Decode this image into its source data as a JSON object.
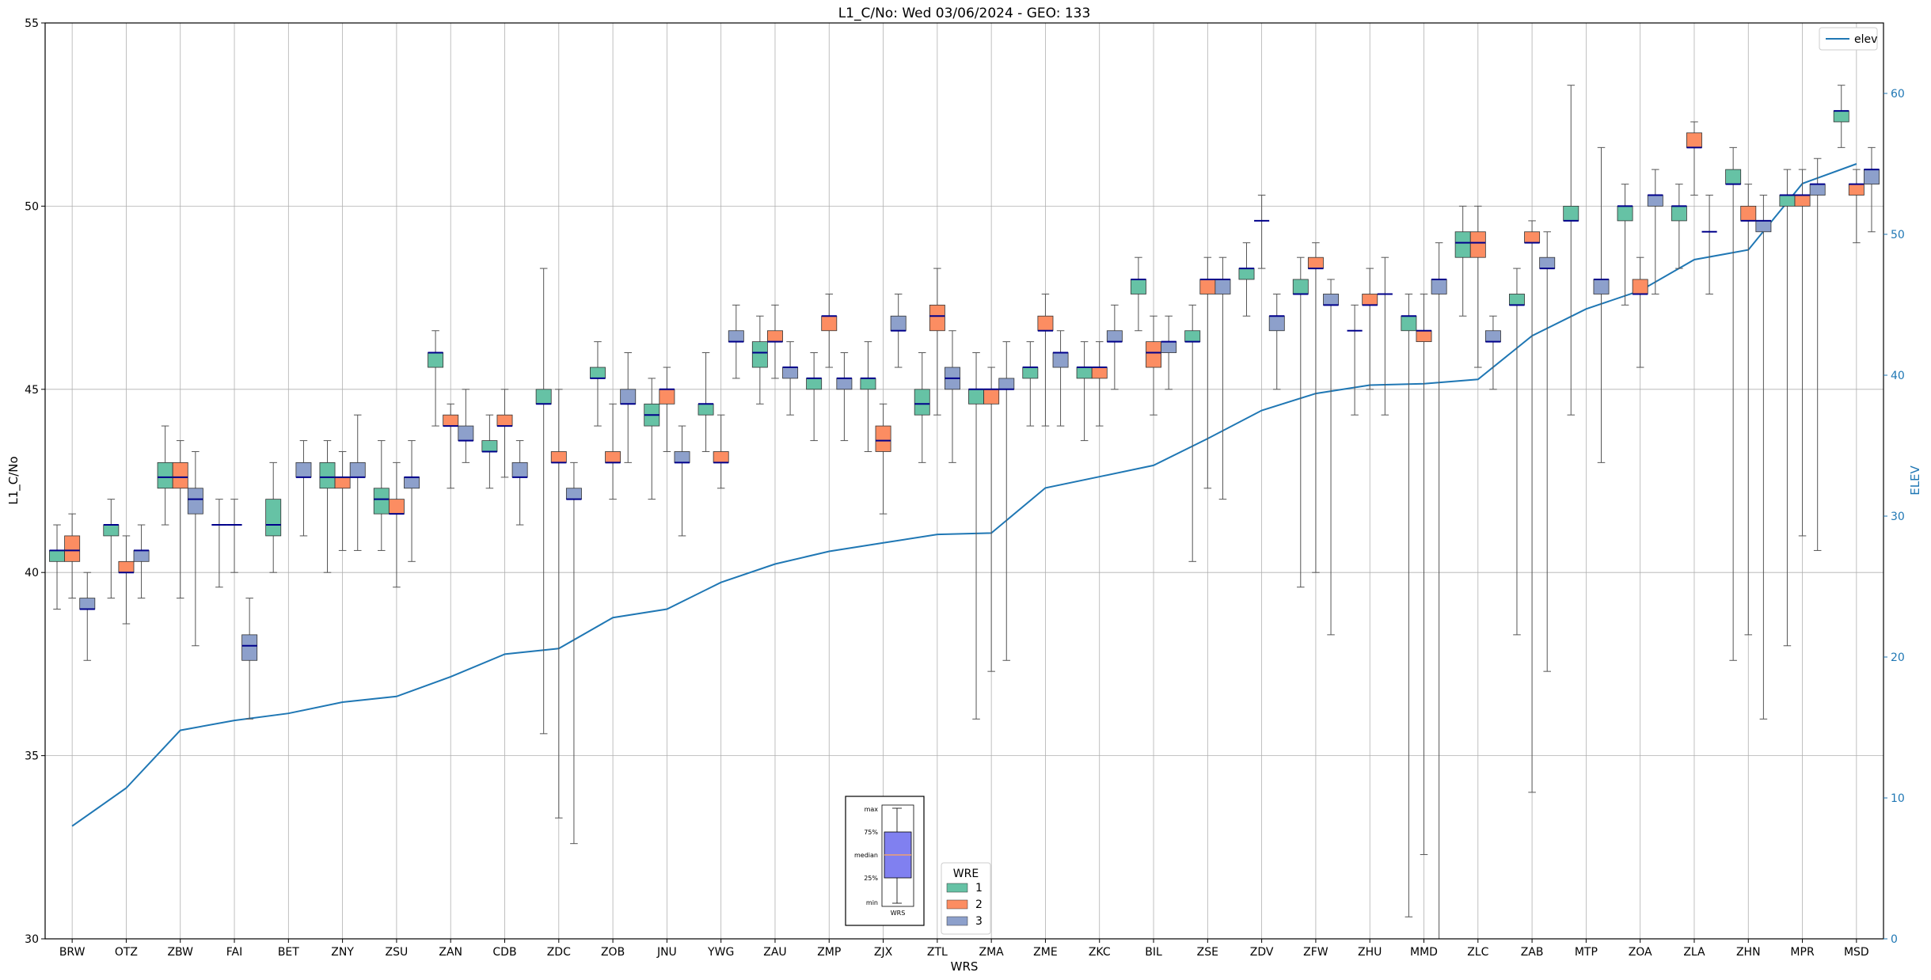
{
  "chart_data": {
    "type": "box",
    "title": "L1_C/No: Wed 03/06/2024 - GEO: 133",
    "xlabel": "WRS",
    "ylabel": "L1_C/No",
    "y2label": "ELEV",
    "ylim": [
      30,
      55
    ],
    "y2lim": [
      0,
      65
    ],
    "yticks": [
      30,
      35,
      40,
      45,
      50,
      55
    ],
    "y2ticks": [
      0,
      10,
      20,
      30,
      40,
      50,
      60
    ],
    "grid": true,
    "categories": [
      "BRW",
      "OTZ",
      "ZBW",
      "FAI",
      "BET",
      "ZNY",
      "ZSU",
      "ZAN",
      "CDB",
      "ZDC",
      "ZOB",
      "JNU",
      "YWG",
      "ZAU",
      "ZMP",
      "ZJX",
      "ZTL",
      "ZMA",
      "ZME",
      "ZKC",
      "BIL",
      "ZSE",
      "ZDV",
      "ZFW",
      "ZHU",
      "MMD",
      "ZLC",
      "ZAB",
      "MTP",
      "ZOA",
      "ZLA",
      "ZHN",
      "MPR",
      "MSD"
    ],
    "series_colors": {
      "1": "#66c2a5",
      "2": "#fc8d62",
      "3": "#8da0cb"
    },
    "median_color": "#00008b",
    "elev_color": "#1f77b4",
    "boxes": [
      {
        "cat": "BRW",
        "wre": "1",
        "min": 39.0,
        "q1": 40.3,
        "med": 40.6,
        "q3": 40.6,
        "max": 41.3
      },
      {
        "cat": "BRW",
        "wre": "2",
        "min": 39.3,
        "q1": 40.3,
        "med": 40.6,
        "q3": 41.0,
        "max": 41.6
      },
      {
        "cat": "BRW",
        "wre": "3",
        "min": 37.6,
        "q1": 39.0,
        "med": 39.0,
        "q3": 39.3,
        "max": 40.0
      },
      {
        "cat": "OTZ",
        "wre": "1",
        "min": 39.3,
        "q1": 41.0,
        "med": 41.3,
        "q3": 41.3,
        "max": 42.0
      },
      {
        "cat": "OTZ",
        "wre": "2",
        "min": 38.6,
        "q1": 40.0,
        "med": 40.0,
        "q3": 40.3,
        "max": 41.0
      },
      {
        "cat": "OTZ",
        "wre": "3",
        "min": 39.3,
        "q1": 40.3,
        "med": 40.6,
        "q3": 40.6,
        "max": 41.3
      },
      {
        "cat": "ZBW",
        "wre": "1",
        "min": 41.3,
        "q1": 42.3,
        "med": 42.6,
        "q3": 43.0,
        "max": 44.0
      },
      {
        "cat": "ZBW",
        "wre": "2",
        "min": 39.3,
        "q1": 42.3,
        "med": 42.6,
        "q3": 43.0,
        "max": 43.6
      },
      {
        "cat": "ZBW",
        "wre": "3",
        "min": 38.0,
        "q1": 41.6,
        "med": 42.0,
        "q3": 42.3,
        "max": 43.3
      },
      {
        "cat": "FAI",
        "wre": "1",
        "min": 39.6,
        "q1": 41.3,
        "med": 41.3,
        "q3": 41.3,
        "max": 42.0
      },
      {
        "cat": "FAI",
        "wre": "2",
        "min": 40.0,
        "q1": 41.3,
        "med": 41.3,
        "q3": 41.3,
        "max": 42.0
      },
      {
        "cat": "FAI",
        "wre": "3",
        "min": 36.0,
        "q1": 37.6,
        "med": 38.0,
        "q3": 38.3,
        "max": 39.3
      },
      {
        "cat": "BET",
        "wre": "1",
        "min": 40.0,
        "q1": 41.0,
        "med": 41.3,
        "q3": 42.0,
        "max": 43.0
      },
      {
        "cat": "BET",
        "wre": "3",
        "min": 41.0,
        "q1": 42.6,
        "med": 42.6,
        "q3": 43.0,
        "max": 43.6
      },
      {
        "cat": "ZNY",
        "wre": "1",
        "min": 40.0,
        "q1": 42.3,
        "med": 42.6,
        "q3": 43.0,
        "max": 43.6
      },
      {
        "cat": "ZNY",
        "wre": "2",
        "min": 40.6,
        "q1": 42.3,
        "med": 42.6,
        "q3": 42.6,
        "max": 43.3
      },
      {
        "cat": "ZNY",
        "wre": "3",
        "min": 40.6,
        "q1": 42.6,
        "med": 42.6,
        "q3": 43.0,
        "max": 44.3
      },
      {
        "cat": "ZSU",
        "wre": "1",
        "min": 40.6,
        "q1": 41.6,
        "med": 42.0,
        "q3": 42.3,
        "max": 43.6
      },
      {
        "cat": "ZSU",
        "wre": "2",
        "min": 39.6,
        "q1": 41.6,
        "med": 41.6,
        "q3": 42.0,
        "max": 43.0
      },
      {
        "cat": "ZSU",
        "wre": "3",
        "min": 40.3,
        "q1": 42.3,
        "med": 42.6,
        "q3": 42.6,
        "max": 43.6
      },
      {
        "cat": "ZAN",
        "wre": "1",
        "min": 44.0,
        "q1": 45.6,
        "med": 46.0,
        "q3": 46.0,
        "max": 46.6
      },
      {
        "cat": "ZAN",
        "wre": "2",
        "min": 42.3,
        "q1": 44.0,
        "med": 44.0,
        "q3": 44.3,
        "max": 44.6
      },
      {
        "cat": "ZAN",
        "wre": "3",
        "min": 43.0,
        "q1": 43.6,
        "med": 43.6,
        "q3": 44.0,
        "max": 45.0
      },
      {
        "cat": "CDB",
        "wre": "1",
        "min": 42.3,
        "q1": 43.3,
        "med": 43.3,
        "q3": 43.6,
        "max": 44.3
      },
      {
        "cat": "CDB",
        "wre": "2",
        "min": 42.6,
        "q1": 44.0,
        "med": 44.0,
        "q3": 44.3,
        "max": 45.0
      },
      {
        "cat": "CDB",
        "wre": "3",
        "min": 41.3,
        "q1": 42.6,
        "med": 42.6,
        "q3": 43.0,
        "max": 43.6
      },
      {
        "cat": "ZDC",
        "wre": "1",
        "min": 35.6,
        "q1": 44.6,
        "med": 44.6,
        "q3": 45.0,
        "max": 48.3
      },
      {
        "cat": "ZDC",
        "wre": "2",
        "min": 33.3,
        "q1": 43.0,
        "med": 43.0,
        "q3": 43.3,
        "max": 45.0
      },
      {
        "cat": "ZDC",
        "wre": "3",
        "min": 32.6,
        "q1": 42.0,
        "med": 42.0,
        "q3": 42.3,
        "max": 43.0
      },
      {
        "cat": "ZOB",
        "wre": "1",
        "min": 44.0,
        "q1": 45.3,
        "med": 45.3,
        "q3": 45.6,
        "max": 46.3
      },
      {
        "cat": "ZOB",
        "wre": "2",
        "min": 42.0,
        "q1": 43.0,
        "med": 43.0,
        "q3": 43.3,
        "max": 44.6
      },
      {
        "cat": "ZOB",
        "wre": "3",
        "min": 43.0,
        "q1": 44.6,
        "med": 44.6,
        "q3": 45.0,
        "max": 46.0
      },
      {
        "cat": "JNU",
        "wre": "1",
        "min": 42.0,
        "q1": 44.0,
        "med": 44.3,
        "q3": 44.6,
        "max": 45.3
      },
      {
        "cat": "JNU",
        "wre": "2",
        "min": 43.3,
        "q1": 44.6,
        "med": 45.0,
        "q3": 45.0,
        "max": 45.6
      },
      {
        "cat": "JNU",
        "wre": "3",
        "min": 41.0,
        "q1": 43.0,
        "med": 43.0,
        "q3": 43.3,
        "max": 44.0
      },
      {
        "cat": "YWG",
        "wre": "1",
        "min": 43.3,
        "q1": 44.3,
        "med": 44.6,
        "q3": 44.6,
        "max": 46.0
      },
      {
        "cat": "YWG",
        "wre": "2",
        "min": 42.3,
        "q1": 43.0,
        "med": 43.0,
        "q3": 43.3,
        "max": 44.3
      },
      {
        "cat": "YWG",
        "wre": "3",
        "min": 45.3,
        "q1": 46.3,
        "med": 46.3,
        "q3": 46.6,
        "max": 47.3
      },
      {
        "cat": "ZAU",
        "wre": "1",
        "min": 44.6,
        "q1": 45.6,
        "med": 46.0,
        "q3": 46.3,
        "max": 47.0
      },
      {
        "cat": "ZAU",
        "wre": "2",
        "min": 45.3,
        "q1": 46.3,
        "med": 46.3,
        "q3": 46.6,
        "max": 47.3
      },
      {
        "cat": "ZAU",
        "wre": "3",
        "min": 44.3,
        "q1": 45.3,
        "med": 45.6,
        "q3": 45.6,
        "max": 46.3
      },
      {
        "cat": "ZMP",
        "wre": "1",
        "min": 43.6,
        "q1": 45.0,
        "med": 45.3,
        "q3": 45.3,
        "max": 46.0
      },
      {
        "cat": "ZMP",
        "wre": "2",
        "min": 45.6,
        "q1": 46.6,
        "med": 47.0,
        "q3": 47.0,
        "max": 47.6
      },
      {
        "cat": "ZMP",
        "wre": "3",
        "min": 43.6,
        "q1": 45.0,
        "med": 45.3,
        "q3": 45.3,
        "max": 46.0
      },
      {
        "cat": "ZJX",
        "wre": "1",
        "min": 43.3,
        "q1": 45.0,
        "med": 45.3,
        "q3": 45.3,
        "max": 46.3
      },
      {
        "cat": "ZJX",
        "wre": "2",
        "min": 41.6,
        "q1": 43.3,
        "med": 43.6,
        "q3": 44.0,
        "max": 44.6
      },
      {
        "cat": "ZJX",
        "wre": "3",
        "min": 45.6,
        "q1": 46.6,
        "med": 46.6,
        "q3": 47.0,
        "max": 47.6
      },
      {
        "cat": "ZTL",
        "wre": "1",
        "min": 43.0,
        "q1": 44.3,
        "med": 44.6,
        "q3": 45.0,
        "max": 46.0
      },
      {
        "cat": "ZTL",
        "wre": "2",
        "min": 44.3,
        "q1": 46.6,
        "med": 47.0,
        "q3": 47.3,
        "max": 48.3
      },
      {
        "cat": "ZTL",
        "wre": "3",
        "min": 43.0,
        "q1": 45.0,
        "med": 45.3,
        "q3": 45.6,
        "max": 46.6
      },
      {
        "cat": "ZMA",
        "wre": "1",
        "min": 36.0,
        "q1": 44.6,
        "med": 45.0,
        "q3": 45.0,
        "max": 46.0
      },
      {
        "cat": "ZMA",
        "wre": "2",
        "min": 37.3,
        "q1": 44.6,
        "med": 45.0,
        "q3": 45.0,
        "max": 45.6
      },
      {
        "cat": "ZMA",
        "wre": "3",
        "min": 37.6,
        "q1": 45.0,
        "med": 45.0,
        "q3": 45.3,
        "max": 46.3
      },
      {
        "cat": "ZME",
        "wre": "1",
        "min": 44.0,
        "q1": 45.3,
        "med": 45.6,
        "q3": 45.6,
        "max": 46.3
      },
      {
        "cat": "ZME",
        "wre": "2",
        "min": 44.0,
        "q1": 46.6,
        "med": 46.6,
        "q3": 47.0,
        "max": 47.6
      },
      {
        "cat": "ZME",
        "wre": "3",
        "min": 44.0,
        "q1": 45.6,
        "med": 46.0,
        "q3": 46.0,
        "max": 46.6
      },
      {
        "cat": "ZKC",
        "wre": "1",
        "min": 43.6,
        "q1": 45.3,
        "med": 45.6,
        "q3": 45.6,
        "max": 46.3
      },
      {
        "cat": "ZKC",
        "wre": "2",
        "min": 44.0,
        "q1": 45.3,
        "med": 45.6,
        "q3": 45.6,
        "max": 46.3
      },
      {
        "cat": "ZKC",
        "wre": "3",
        "min": 45.0,
        "q1": 46.3,
        "med": 46.3,
        "q3": 46.6,
        "max": 47.3
      },
      {
        "cat": "BIL",
        "wre": "1",
        "min": 46.6,
        "q1": 47.6,
        "med": 48.0,
        "q3": 48.0,
        "max": 48.6
      },
      {
        "cat": "BIL",
        "wre": "2",
        "min": 44.3,
        "q1": 45.6,
        "med": 46.0,
        "q3": 46.3,
        "max": 47.0
      },
      {
        "cat": "BIL",
        "wre": "3",
        "min": 45.0,
        "q1": 46.0,
        "med": 46.3,
        "q3": 46.3,
        "max": 47.0
      },
      {
        "cat": "ZSE",
        "wre": "1",
        "min": 40.3,
        "q1": 46.3,
        "med": 46.3,
        "q3": 46.6,
        "max": 47.3
      },
      {
        "cat": "ZSE",
        "wre": "2",
        "min": 42.3,
        "q1": 47.6,
        "med": 48.0,
        "q3": 48.0,
        "max": 48.6
      },
      {
        "cat": "ZSE",
        "wre": "3",
        "min": 42.0,
        "q1": 47.6,
        "med": 48.0,
        "q3": 48.0,
        "max": 48.6
      },
      {
        "cat": "ZDV",
        "wre": "1",
        "min": 47.0,
        "q1": 48.0,
        "med": 48.3,
        "q3": 48.3,
        "max": 49.0
      },
      {
        "cat": "ZDV",
        "wre": "2",
        "min": 48.3,
        "q1": 49.6,
        "med": 49.6,
        "q3": 49.6,
        "max": 50.3
      },
      {
        "cat": "ZDV",
        "wre": "3",
        "min": 45.0,
        "q1": 46.6,
        "med": 47.0,
        "q3": 47.0,
        "max": 47.6
      },
      {
        "cat": "ZFW",
        "wre": "1",
        "min": 39.6,
        "q1": 47.6,
        "med": 47.6,
        "q3": 48.0,
        "max": 48.6
      },
      {
        "cat": "ZFW",
        "wre": "2",
        "min": 40.0,
        "q1": 48.3,
        "med": 48.3,
        "q3": 48.6,
        "max": 49.0
      },
      {
        "cat": "ZFW",
        "wre": "3",
        "min": 38.3,
        "q1": 47.3,
        "med": 47.3,
        "q3": 47.6,
        "max": 48.0
      },
      {
        "cat": "ZHU",
        "wre": "1",
        "min": 44.3,
        "q1": 46.6,
        "med": 46.6,
        "q3": 46.6,
        "max": 47.3
      },
      {
        "cat": "ZHU",
        "wre": "2",
        "min": 45.0,
        "q1": 47.3,
        "med": 47.3,
        "q3": 47.6,
        "max": 48.3
      },
      {
        "cat": "ZHU",
        "wre": "3",
        "min": 44.3,
        "q1": 47.6,
        "med": 47.6,
        "q3": 47.6,
        "max": 48.6
      },
      {
        "cat": "MMD",
        "wre": "1",
        "min": 30.6,
        "q1": 46.6,
        "med": 47.0,
        "q3": 47.0,
        "max": 47.6
      },
      {
        "cat": "MMD",
        "wre": "2",
        "min": 32.3,
        "q1": 46.3,
        "med": 46.6,
        "q3": 46.6,
        "max": 47.6
      },
      {
        "cat": "MMD",
        "wre": "3",
        "min": 30.0,
        "q1": 47.6,
        "med": 48.0,
        "q3": 48.0,
        "max": 49.0
      },
      {
        "cat": "ZLC",
        "wre": "1",
        "min": 47.0,
        "q1": 48.6,
        "med": 49.0,
        "q3": 49.3,
        "max": 50.0
      },
      {
        "cat": "ZLC",
        "wre": "2",
        "min": 45.6,
        "q1": 48.6,
        "med": 49.0,
        "q3": 49.3,
        "max": 50.0
      },
      {
        "cat": "ZLC",
        "wre": "3",
        "min": 45.0,
        "q1": 46.3,
        "med": 46.3,
        "q3": 46.6,
        "max": 47.0
      },
      {
        "cat": "ZAB",
        "wre": "1",
        "min": 38.3,
        "q1": 47.3,
        "med": 47.3,
        "q3": 47.6,
        "max": 48.3
      },
      {
        "cat": "ZAB",
        "wre": "2",
        "min": 34.0,
        "q1": 49.0,
        "med": 49.0,
        "q3": 49.3,
        "max": 49.6
      },
      {
        "cat": "ZAB",
        "wre": "3",
        "min": 37.3,
        "q1": 48.3,
        "med": 48.3,
        "q3": 48.6,
        "max": 49.3
      },
      {
        "cat": "MTP",
        "wre": "1",
        "min": 44.3,
        "q1": 49.6,
        "med": 49.6,
        "q3": 50.0,
        "max": 53.3
      },
      {
        "cat": "MTP",
        "wre": "3",
        "min": 43.0,
        "q1": 47.6,
        "med": 48.0,
        "q3": 48.0,
        "max": 51.6
      },
      {
        "cat": "ZOA",
        "wre": "1",
        "min": 47.3,
        "q1": 49.6,
        "med": 50.0,
        "q3": 50.0,
        "max": 50.6
      },
      {
        "cat": "ZOA",
        "wre": "2",
        "min": 45.6,
        "q1": 47.6,
        "med": 47.6,
        "q3": 48.0,
        "max": 48.6
      },
      {
        "cat": "ZOA",
        "wre": "3",
        "min": 47.6,
        "q1": 50.0,
        "med": 50.3,
        "q3": 50.3,
        "max": 51.0
      },
      {
        "cat": "ZLA",
        "wre": "1",
        "min": 48.3,
        "q1": 49.6,
        "med": 50.0,
        "q3": 50.0,
        "max": 50.6
      },
      {
        "cat": "ZLA",
        "wre": "2",
        "min": 50.3,
        "q1": 51.6,
        "med": 51.6,
        "q3": 52.0,
        "max": 52.3
      },
      {
        "cat": "ZLA",
        "wre": "3",
        "min": 47.6,
        "q1": 49.3,
        "med": 49.3,
        "q3": 49.3,
        "max": 50.3
      },
      {
        "cat": "ZHN",
        "wre": "1",
        "min": 37.6,
        "q1": 50.6,
        "med": 50.6,
        "q3": 51.0,
        "max": 51.6
      },
      {
        "cat": "ZHN",
        "wre": "2",
        "min": 38.3,
        "q1": 49.6,
        "med": 49.6,
        "q3": 50.0,
        "max": 50.6
      },
      {
        "cat": "ZHN",
        "wre": "3",
        "min": 36.0,
        "q1": 49.3,
        "med": 49.6,
        "q3": 49.6,
        "max": 50.3
      },
      {
        "cat": "MPR",
        "wre": "1",
        "min": 38.0,
        "q1": 50.0,
        "med": 50.3,
        "q3": 50.3,
        "max": 51.0
      },
      {
        "cat": "MPR",
        "wre": "2",
        "min": 41.0,
        "q1": 50.0,
        "med": 50.3,
        "q3": 50.3,
        "max": 51.0
      },
      {
        "cat": "MPR",
        "wre": "3",
        "min": 40.6,
        "q1": 50.3,
        "med": 50.6,
        "q3": 50.6,
        "max": 51.3
      },
      {
        "cat": "MSD",
        "wre": "1",
        "min": 51.6,
        "q1": 52.3,
        "med": 52.6,
        "q3": 52.6,
        "max": 53.3
      },
      {
        "cat": "MSD",
        "wre": "2",
        "min": 49.0,
        "q1": 50.3,
        "med": 50.6,
        "q3": 50.6,
        "max": 51.0
      },
      {
        "cat": "MSD",
        "wre": "3",
        "min": 49.3,
        "q1": 50.6,
        "med": 51.0,
        "q3": 51.0,
        "max": 51.6
      }
    ],
    "elev_series": {
      "name": "elev",
      "values": [
        8.0,
        10.7,
        14.8,
        15.5,
        16.0,
        16.8,
        17.2,
        18.6,
        20.2,
        20.6,
        22.8,
        23.4,
        25.3,
        26.6,
        27.5,
        28.1,
        28.7,
        28.8,
        32.0,
        32.8,
        33.6,
        35.5,
        37.5,
        38.7,
        39.3,
        39.4,
        39.7,
        42.8,
        44.7,
        46.0,
        48.2,
        48.9,
        53.6,
        55.0
      ]
    },
    "legends": {
      "elev_legend": {
        "label": "elev",
        "position": "top-right"
      },
      "wre_legend": {
        "title": "WRE",
        "items": [
          "1",
          "2",
          "3"
        ],
        "position": "bottom-center"
      }
    },
    "key_box": {
      "labels": [
        "max",
        "75%",
        "median",
        "25%",
        "min"
      ],
      "caption": "WRS",
      "fill": "#8080f0",
      "median_color": "#f0a070"
    }
  }
}
